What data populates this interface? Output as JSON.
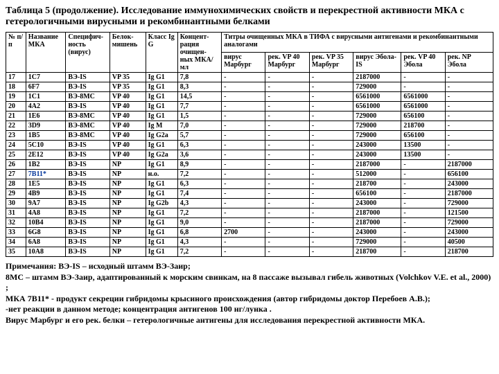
{
  "title": "Таблица 5 (продолжение). Исследование иммунохимических свойств и перекрестной активности МКА с гетерологичными вирусными и рекомбинантными белками",
  "h": {
    "c0": "№ п/п",
    "c1": "Название МКА",
    "c2": "Специфич-ность (вирус)",
    "c3": "Белок-мишень",
    "c4": "Класс Ig G",
    "c5": "Концент-рация очищен-ных МКА/мл",
    "titers": "Титры очищенных МКА в ТИФА с вирусными антигенами и рекомбинантными аналогами",
    "t0": "вирус Марбург",
    "t1": "рек. VP 40 Марбург",
    "t2": "рек. VP 35 Марбург",
    "t3": "вирус Эбола-IS",
    "t4": "рек. VP 40 Эбола",
    "t5": "рек. NP Эбола"
  },
  "rows": [
    [
      "17",
      "1С7",
      "ВЭ-IS",
      "VP 35",
      "Ig G1",
      "7,8",
      "-",
      "-",
      "-",
      "2187000",
      "-",
      "-"
    ],
    [
      "18",
      "6F7",
      "ВЭ-IS",
      "VP 35",
      "Ig G1",
      "8,3",
      "-",
      "-",
      "-",
      "729000",
      "-",
      "-"
    ],
    [
      "19",
      "1С1",
      "ВЭ-8МС",
      "VP 40",
      "Ig G1",
      "14,5",
      "-",
      "-",
      "-",
      "6561000",
      "6561000",
      "-"
    ],
    [
      "20",
      "4А2",
      "ВЭ-IS",
      "VP 40",
      "Ig G1",
      "7,7",
      "-",
      "-",
      "-",
      "6561000",
      "6561000",
      "-"
    ],
    [
      "21",
      "1Е6",
      "ВЭ-8МС",
      "VP 40",
      "Ig G1",
      "1,5",
      "-",
      "-",
      "-",
      "729000",
      "656100",
      "-"
    ],
    [
      "22",
      "3D9",
      "ВЭ-8МС",
      "VP 40",
      "Ig M",
      "7,0",
      "-",
      "-",
      "-",
      "729000",
      "218700",
      "-"
    ],
    [
      "23",
      "1В5",
      "ВЭ-8МС",
      "VP 40",
      "Ig G2а",
      "5,7",
      "-",
      "-",
      "-",
      "729000",
      "656100",
      "-"
    ],
    [
      "24",
      "5С10",
      "ВЭ-IS",
      "VP 40",
      "Ig G1",
      "6,3",
      "-",
      "-",
      "-",
      "243000",
      "13500",
      "-"
    ],
    [
      "25",
      "2Е12",
      "ВЭ-IS",
      "VP 40",
      "Ig G2а",
      "3,6",
      "-",
      "-",
      "-",
      "243000",
      "13500",
      "-"
    ],
    [
      "26",
      "1В2",
      "ВЭ-IS",
      "NP",
      "Ig G1",
      "8,9",
      "-",
      "-",
      "-",
      "2187000",
      "-",
      "2187000"
    ],
    [
      "27",
      "7В11*",
      "ВЭ-IS",
      "NP",
      "н.о.",
      "7,2",
      "-",
      "-",
      "-",
      "512000",
      "-",
      "656100"
    ],
    [
      "28",
      "1Е5",
      "ВЭ-IS",
      "NP",
      "Ig G1",
      "6,3",
      "-",
      "-",
      "-",
      "218700",
      "-",
      "243000"
    ],
    [
      "29",
      "4В9",
      "ВЭ-IS",
      "NP",
      "Ig G1",
      "7,4",
      "-",
      "-",
      "-",
      "656100",
      "-",
      "2187000"
    ],
    [
      "30",
      "9А7",
      "ВЭ-IS",
      "NP",
      "Ig G2b",
      "4,3",
      "-",
      "-",
      "-",
      "243000",
      "-",
      "729000"
    ],
    [
      "31",
      "4А8",
      "ВЭ-IS",
      "NP",
      "Ig G1",
      "7,2",
      "-",
      "-",
      "-",
      "2187000",
      "-",
      "121500"
    ],
    [
      "32",
      "10В4",
      "ВЭ-IS",
      "NP",
      "Ig G1",
      "9,0",
      "-",
      "-",
      "-",
      "2187000",
      "-",
      "729000"
    ],
    [
      "33",
      "6G8",
      "ВЭ-IS",
      "NP",
      "Ig G1",
      "6,8",
      "2700",
      "-",
      "-",
      "243000",
      "-",
      "243000"
    ],
    [
      "34",
      "6А8",
      "ВЭ-IS",
      "NP",
      "Ig G1",
      "4,3",
      "-",
      "-",
      "-",
      "729000",
      "-",
      "40500"
    ],
    [
      "35",
      "10А8",
      "ВЭ-IS",
      "NP",
      "Ig G1",
      "7,2",
      "-",
      "-",
      "-",
      "218700",
      "-",
      "218700"
    ]
  ],
  "blueRow": 10,
  "notes": [
    "Примечания: ВЭ-IS – исходный штамм ВЭ-Заир;",
    "8МС – штамм ВЭ-Заир, адаптированный к морским свинкам, на 8 пассаже вызывал гибель животных (Volchkov V.E. et al., 2000) ;",
    "МКА 7В11* - продукт секреции гибридомы крысиного происхождения (автор гибридомы доктор Перебоев А.В.);",
    "-нет реакции в данном методе; концентрация антигенов 100 нг/лунка .",
    "Вирус Марбург и его рек. белки – гетерологичные антигены для исследования перекрестной активности МКА."
  ]
}
